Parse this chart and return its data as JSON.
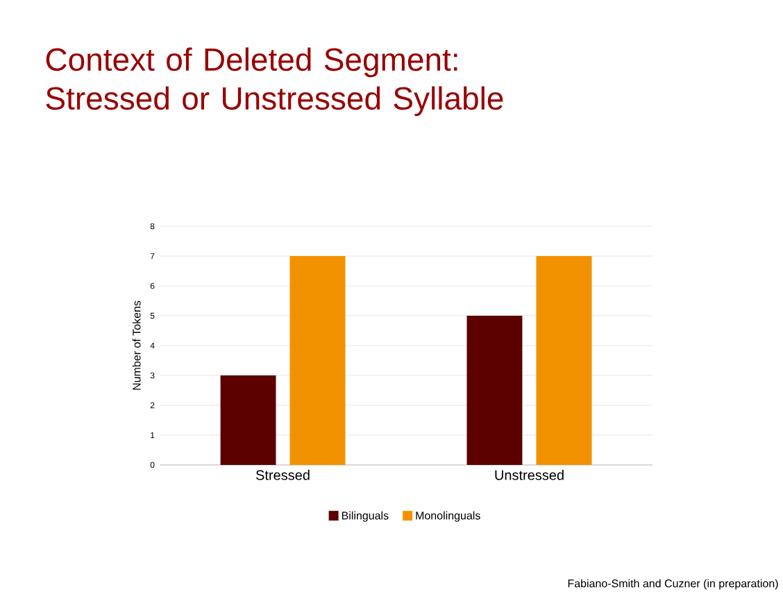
{
  "chart_data": {
    "type": "bar",
    "title": "Context of Deleted Segment: Stressed or Unstressed Syllable",
    "ylabel": "Number of Tokens",
    "categories": [
      "Stressed",
      "Unstressed"
    ],
    "series": [
      {
        "name": "Bilinguals",
        "color": "#5c0000",
        "values": [
          3,
          5
        ]
      },
      {
        "name": "Monolinguals",
        "color": "#f39200",
        "values": [
          7,
          7
        ]
      }
    ],
    "ylim": [
      0,
      8
    ],
    "yticks": [
      0,
      1,
      2,
      3,
      4,
      5,
      6,
      7,
      8
    ],
    "grid": "y",
    "legend": "bottom",
    "annotations": [
      "Fabiano-Smith and Cuzner (in preparation)"
    ]
  }
}
